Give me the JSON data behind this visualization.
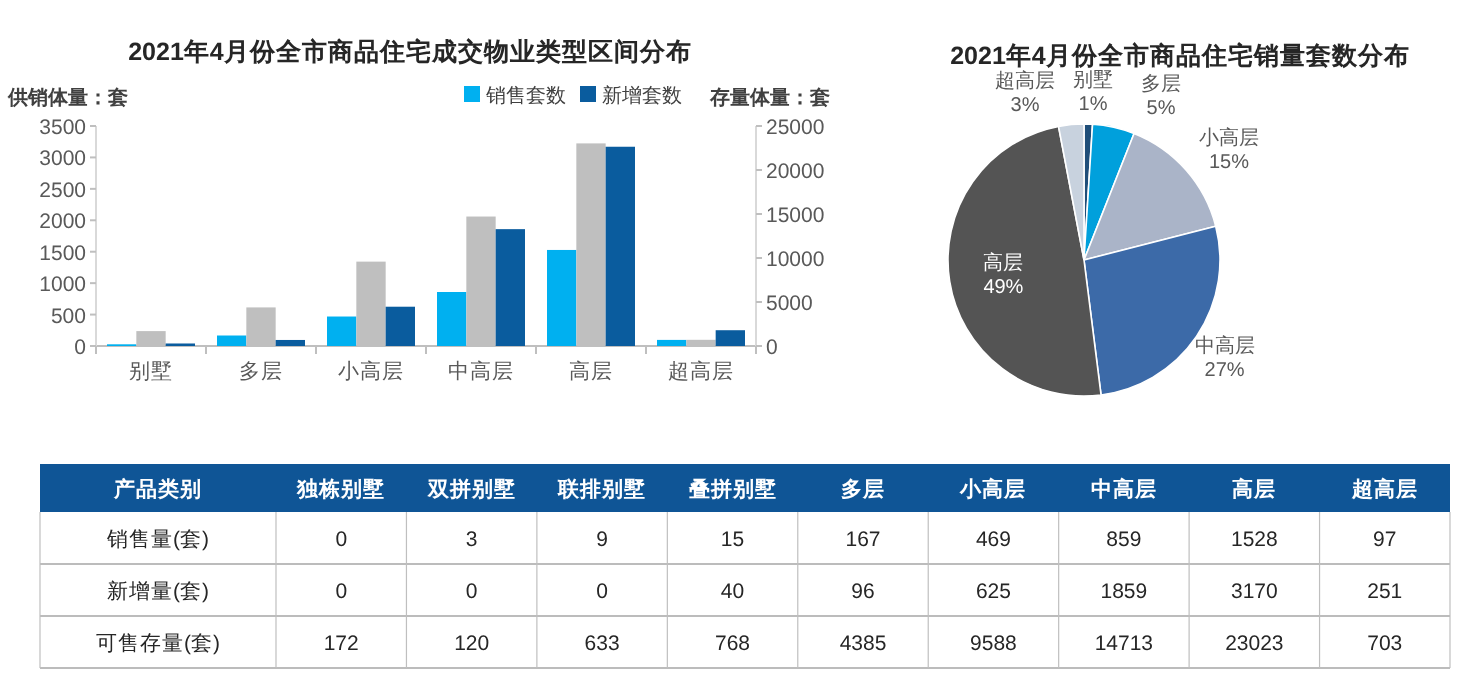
{
  "chart_data": [
    {
      "type": "bar",
      "title": "2021年4月份全市商品住宅成交物业类型区间分布",
      "ylabel": "供销体量：套",
      "y2label": "存量体量：套",
      "categories": [
        "别墅",
        "多层",
        "小高层",
        "中高层",
        "高层",
        "超高层"
      ],
      "series": [
        {
          "name": "销售套数",
          "color": "#00b0f0",
          "values": [
            27,
            167,
            469,
            859,
            1528,
            97
          ]
        },
        {
          "color": "#bfbfbf",
          "axis": "y2",
          "values": [
            1693,
            4385,
            9588,
            14713,
            23023,
            703
          ]
        },
        {
          "name": "新增套数",
          "color": "#0a5c9e",
          "values": [
            40,
            96,
            625,
            1859,
            3170,
            251
          ]
        }
      ],
      "ylim": [
        0,
        3500
      ],
      "yticks": [
        0,
        500,
        1000,
        1500,
        2000,
        2500,
        3000,
        3500
      ],
      "y2lim": [
        0,
        25000
      ],
      "y2ticks": [
        0,
        5000,
        10000,
        15000,
        20000,
        25000
      ],
      "legend": "top right"
    },
    {
      "type": "pie",
      "title": "2021年4月份全市商品住宅销量套数分布",
      "categories": [
        "别墅",
        "多层",
        "小高层",
        "中高层",
        "高层",
        "超高层"
      ],
      "values": [
        1,
        5,
        15,
        27,
        49,
        3
      ],
      "value_labels": [
        "1%",
        "5%",
        "15%",
        "27%",
        "49%",
        "3%"
      ],
      "colors": [
        "#1f4e79",
        "#00a0dc",
        "#aab4c8",
        "#3c6aa8",
        "#545454",
        "#c8d2de"
      ]
    },
    {
      "type": "other",
      "xlabel": "产品类别",
      "categories": [
        "独栋别墅",
        "双拼别墅",
        "联排别墅",
        "叠拼别墅",
        "多层",
        "小高层",
        "中高层",
        "高层",
        "超高层"
      ],
      "series": [
        {
          "name": "销售量(套)",
          "values": [
            0,
            3,
            9,
            15,
            167,
            469,
            859,
            1528,
            97
          ]
        },
        {
          "name": "新增量(套)",
          "values": [
            0,
            0,
            0,
            40,
            96,
            625,
            1859,
            3170,
            251
          ]
        },
        {
          "name": "可售存量(套)",
          "values": [
            172,
            120,
            633,
            768,
            4385,
            9588,
            14713,
            23023,
            703
          ]
        }
      ],
      "data_labels": true
    }
  ]
}
